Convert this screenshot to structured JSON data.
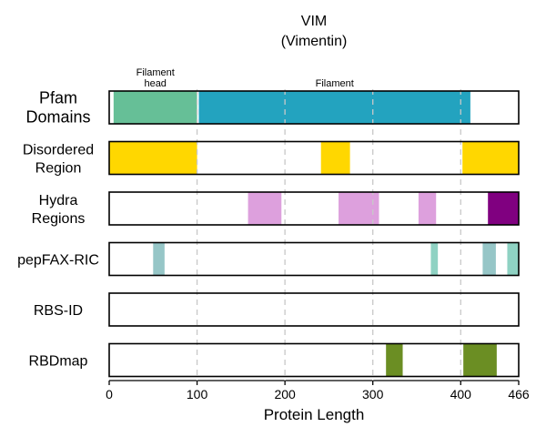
{
  "chart_data": {
    "type": "bar",
    "title": "VIM",
    "subtitle": "(Vimentin)",
    "xlabel": "Protein Length",
    "xlim": [
      0,
      466
    ],
    "xticks": [
      0,
      100,
      200,
      300,
      400,
      466
    ],
    "gridlines": [
      100,
      200,
      300,
      400
    ],
    "grid": "vertical dashed",
    "tracks": [
      {
        "label": [
          "Pfam",
          "Domains"
        ],
        "segments": [
          {
            "start": 5,
            "end": 100,
            "color": "#66bf97",
            "annotation": [
              "Filament",
              "head"
            ]
          },
          {
            "start": 102,
            "end": 411,
            "color": "#23a3bf",
            "annotation": [
              "Filament"
            ]
          }
        ]
      },
      {
        "label": [
          "Disordered",
          "Region"
        ],
        "segments": [
          {
            "start": 0,
            "end": 100,
            "color": "#ffd700"
          },
          {
            "start": 241,
            "end": 274,
            "color": "#ffd700"
          },
          {
            "start": 402,
            "end": 466,
            "color": "#ffd700"
          }
        ]
      },
      {
        "label": [
          "Hydra",
          "Regions"
        ],
        "segments": [
          {
            "start": 158,
            "end": 196,
            "color": "#dda0dd"
          },
          {
            "start": 261,
            "end": 307,
            "color": "#dda0dd"
          },
          {
            "start": 352,
            "end": 372,
            "color": "#dda0dd"
          },
          {
            "start": 431,
            "end": 466,
            "color": "#800080"
          }
        ]
      },
      {
        "label": [
          "pepFAX-RIC"
        ],
        "segments": [
          {
            "start": 50,
            "end": 63,
            "color": "#96c6c7"
          },
          {
            "start": 366,
            "end": 374,
            "color": "#8fd2c3"
          },
          {
            "start": 425,
            "end": 440,
            "color": "#96c6c7"
          },
          {
            "start": 453,
            "end": 466,
            "color": "#8fd2c3"
          }
        ]
      },
      {
        "label": [
          "RBS-ID"
        ],
        "segments": []
      },
      {
        "label": [
          "RBDmap"
        ],
        "segments": [
          {
            "start": 315,
            "end": 334,
            "color": "#6b8e23"
          },
          {
            "start": 403,
            "end": 441,
            "color": "#6b8e23"
          }
        ]
      }
    ]
  }
}
